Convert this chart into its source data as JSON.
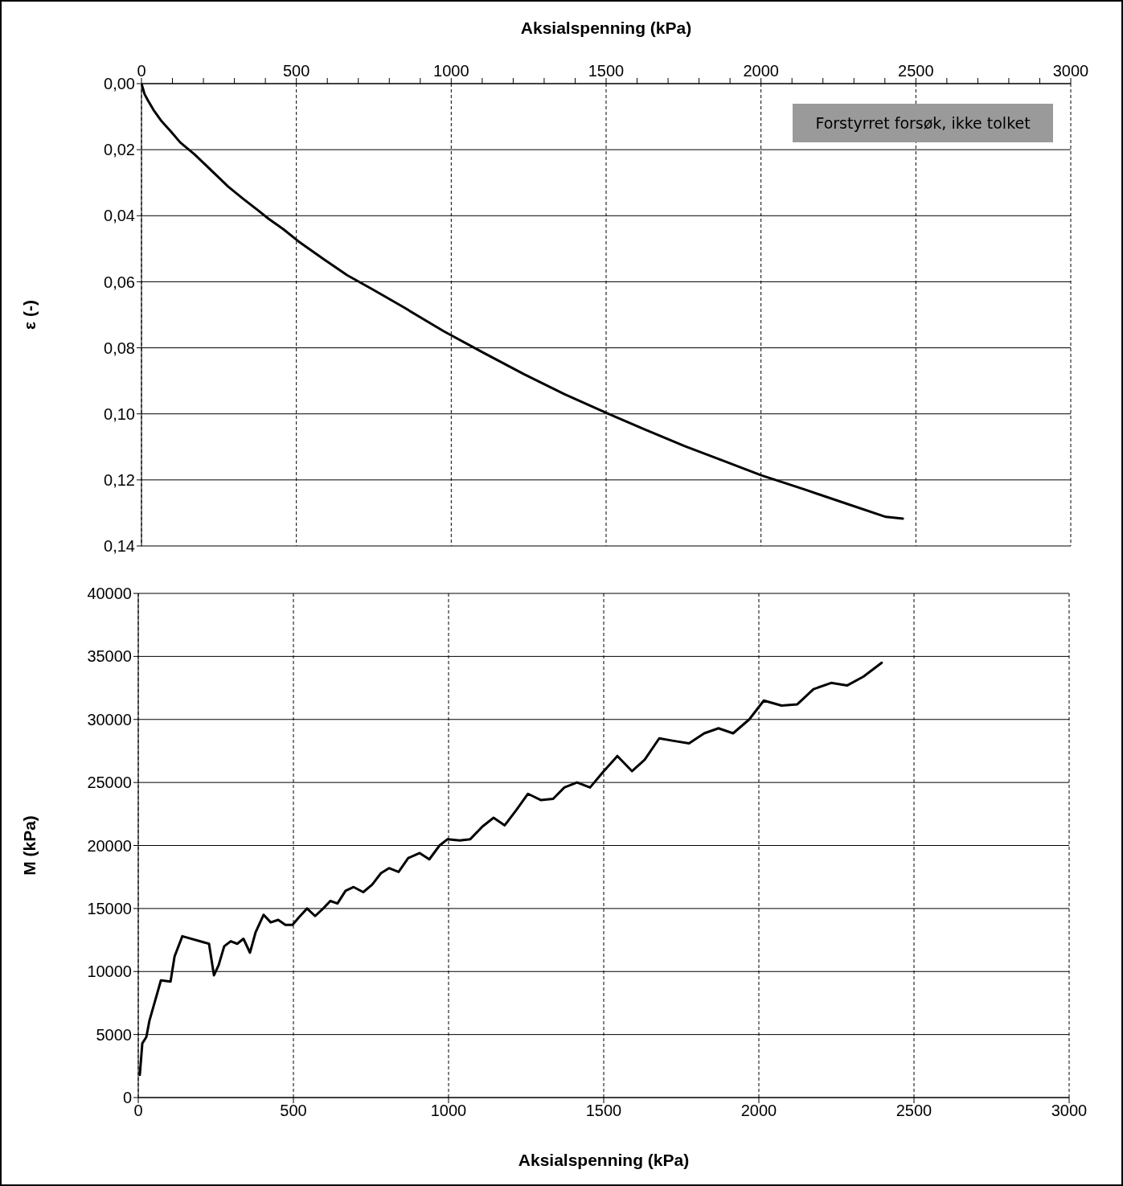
{
  "chart_data": [
    {
      "type": "line",
      "xlabel": "Aksialspenning (kPa)",
      "ylabel": "ε (-)",
      "color": "#000000",
      "grid": true,
      "annotations": [
        "Forstyrret forsøk, ikke tolket"
      ],
      "x": [
        0,
        10,
        21,
        39,
        65,
        96,
        125,
        171,
        228,
        280,
        327,
        374,
        410,
        457,
        506,
        587,
        664,
        742,
        846,
        976,
        1106,
        1235,
        1365,
        1503,
        1625,
        1754,
        1884,
        2001,
        2144,
        2273,
        2403,
        2458
      ],
      "values": [
        0,
        0.0032,
        0.0051,
        0.008,
        0.0114,
        0.0146,
        0.0178,
        0.0214,
        0.0265,
        0.0312,
        0.0348,
        0.0382,
        0.0409,
        0.044,
        0.0477,
        0.0531,
        0.058,
        0.0621,
        0.0677,
        0.075,
        0.0816,
        0.088,
        0.094,
        0.0998,
        0.1047,
        0.1098,
        0.1144,
        0.1186,
        0.123,
        0.1271,
        0.1312,
        0.1317
      ],
      "xlim": [
        0,
        3000
      ],
      "xticks": [
        0,
        {
          "value": 100,
          "label": null
        },
        {
          "value": 200,
          "label": null
        },
        {
          "value": 300,
          "label": null
        },
        {
          "value": 400,
          "label": null
        },
        500,
        {
          "value": 600,
          "label": null
        },
        {
          "value": 700,
          "label": null
        },
        {
          "value": 800,
          "label": null
        },
        {
          "value": 900,
          "label": null
        },
        1000,
        {
          "value": 1100,
          "label": null
        },
        {
          "value": 1200,
          "label": null
        },
        {
          "value": 1300,
          "label": null
        },
        {
          "value": 1400,
          "label": null
        },
        1500,
        {
          "value": 1600,
          "label": null
        },
        {
          "value": 1700,
          "label": null
        },
        {
          "value": 1800,
          "label": null
        },
        {
          "value": 1900,
          "label": null
        },
        2000,
        {
          "value": 2100,
          "label": null
        },
        {
          "value": 2200,
          "label": null
        },
        {
          "value": 2300,
          "label": null
        },
        {
          "value": 2400,
          "label": null
        },
        2500,
        {
          "value": 2600,
          "label": null
        },
        {
          "value": 2700,
          "label": null
        },
        {
          "value": 2800,
          "label": null
        },
        {
          "value": 2900,
          "label": null
        },
        3000
      ],
      "ylim": [
        0.14,
        0
      ],
      "yticks": [
        {
          "value": 0,
          "label": "0,00"
        },
        {
          "value": 0.02,
          "label": "0,02"
        },
        {
          "value": 0.04,
          "label": "0,04"
        },
        {
          "value": 0.06,
          "label": "0,06"
        },
        {
          "value": 0.08,
          "label": "0,08"
        },
        {
          "value": 0.1,
          "label": "0,10"
        },
        {
          "value": 0.12,
          "label": "0,12"
        },
        {
          "value": 0.14,
          "label": "0,14"
        }
      ]
    },
    {
      "type": "line",
      "xlabel": "Aksialspenning (kPa)",
      "ylabel": "M (kPa)",
      "color": "#000000",
      "grid": true,
      "x": [
        5,
        13,
        26,
        36,
        73,
        104,
        117,
        142,
        228,
        244,
        259,
        277,
        298,
        319,
        339,
        360,
        378,
        404,
        427,
        451,
        474,
        497,
        518,
        544,
        570,
        596,
        619,
        642,
        668,
        694,
        725,
        754,
        782,
        808,
        839,
        870,
        907,
        938,
        971,
        997,
        1036,
        1070,
        1109,
        1145,
        1181,
        1218,
        1256,
        1298,
        1337,
        1373,
        1414,
        1456,
        1497,
        1544,
        1591,
        1632,
        1679,
        1725,
        1775,
        1824,
        1870,
        1917,
        1969,
        2016,
        2073,
        2124,
        2176,
        2233,
        2285,
        2337,
        2396
      ],
      "values": [
        1800,
        4300,
        4800,
        6100,
        9300,
        9200,
        11200,
        12800,
        12200,
        9700,
        10500,
        12000,
        12400,
        12200,
        12600,
        11500,
        13100,
        14500,
        13900,
        14100,
        13700,
        13700,
        14300,
        15000,
        14400,
        15000,
        15600,
        15400,
        16400,
        16700,
        16300,
        16900,
        17800,
        18200,
        17900,
        19000,
        19400,
        18900,
        20000,
        20500,
        20400,
        20500,
        21500,
        22200,
        21600,
        22800,
        24100,
        23600,
        23700,
        24600,
        25000,
        24600,
        25800,
        27100,
        25900,
        26800,
        28500,
        28300,
        28100,
        28900,
        29300,
        28900,
        30000,
        31500,
        31100,
        31200,
        32400,
        32900,
        32700,
        33400,
        34500
      ],
      "xlim": [
        0,
        3000
      ],
      "xticks": [
        0,
        500,
        1000,
        1500,
        2000,
        2500,
        3000
      ],
      "ylim": [
        0,
        40000
      ],
      "yticks": [
        0,
        5000,
        10000,
        15000,
        20000,
        25000,
        30000,
        35000,
        40000
      ]
    }
  ]
}
